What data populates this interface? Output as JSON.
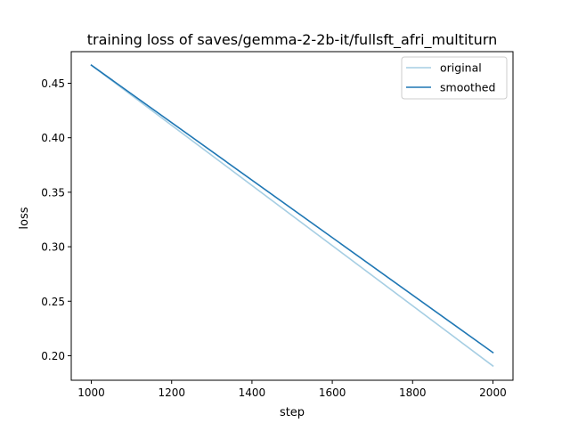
{
  "chart_data": {
    "type": "line",
    "title": "training loss of saves/gemma-2-2b-it/fullsft_afri_multiturn",
    "xlabel": "step",
    "ylabel": "loss",
    "xlim": [
      950,
      2050
    ],
    "ylim": [
      0.1775,
      0.479
    ],
    "xticks": [
      1000,
      1200,
      1400,
      1600,
      1800,
      2000
    ],
    "xtick_labels": [
      "1000",
      "1200",
      "1400",
      "1600",
      "1800",
      "2000"
    ],
    "yticks": [
      0.2,
      0.25,
      0.3,
      0.35,
      0.4,
      0.45
    ],
    "ytick_labels": [
      "0.20",
      "0.25",
      "0.30",
      "0.35",
      "0.40",
      "0.45"
    ],
    "legend_position": "top-right",
    "grid": false,
    "series": [
      {
        "name": "original",
        "color": "#a6cee3",
        "x": [
          1000,
          2000
        ],
        "y": [
          0.4666,
          0.1906
        ]
      },
      {
        "name": "smoothed",
        "color": "#1f77b4",
        "x": [
          1000,
          2000
        ],
        "y": [
          0.4666,
          0.2029
        ]
      }
    ]
  }
}
